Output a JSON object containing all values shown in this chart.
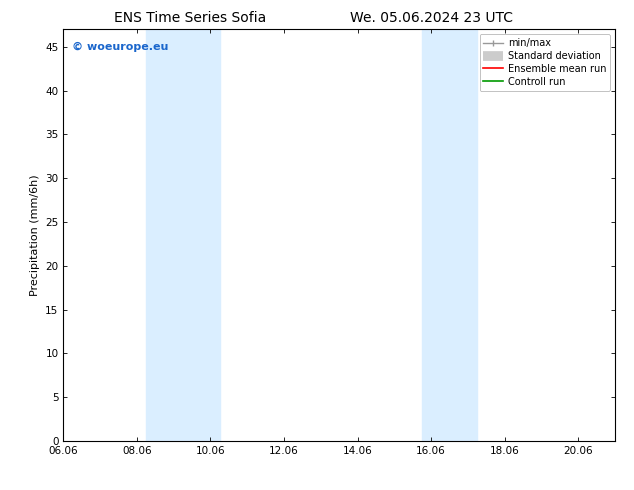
{
  "title_left": "ENS Time Series Sofia",
  "title_right": "We. 05.06.2024 23 UTC",
  "ylabel": "Precipitation (mm/6h)",
  "xlim": [
    0,
    15
  ],
  "ylim": [
    0,
    47
  ],
  "yticks": [
    0,
    5,
    10,
    15,
    20,
    25,
    30,
    35,
    40,
    45
  ],
  "xtick_labels": [
    "06.06",
    "08.06",
    "10.06",
    "12.06",
    "14.06",
    "16.06",
    "18.06",
    "20.06"
  ],
  "xtick_positions": [
    0,
    2,
    4,
    6,
    8,
    10,
    12,
    14
  ],
  "shaded_bands": [
    {
      "x_start": 2.25,
      "x_end": 4.25
    },
    {
      "x_start": 9.75,
      "x_end": 11.25
    }
  ],
  "shade_color": "#daeeff",
  "watermark_text": "© woeurope.eu",
  "watermark_color": "#1a66cc",
  "legend_labels": [
    "min/max",
    "Standard deviation",
    "Ensemble mean run",
    "Controll run"
  ],
  "legend_colors": [
    "#999999",
    "#cccccc",
    "#ff0000",
    "#009900"
  ],
  "bg_color": "#ffffff"
}
